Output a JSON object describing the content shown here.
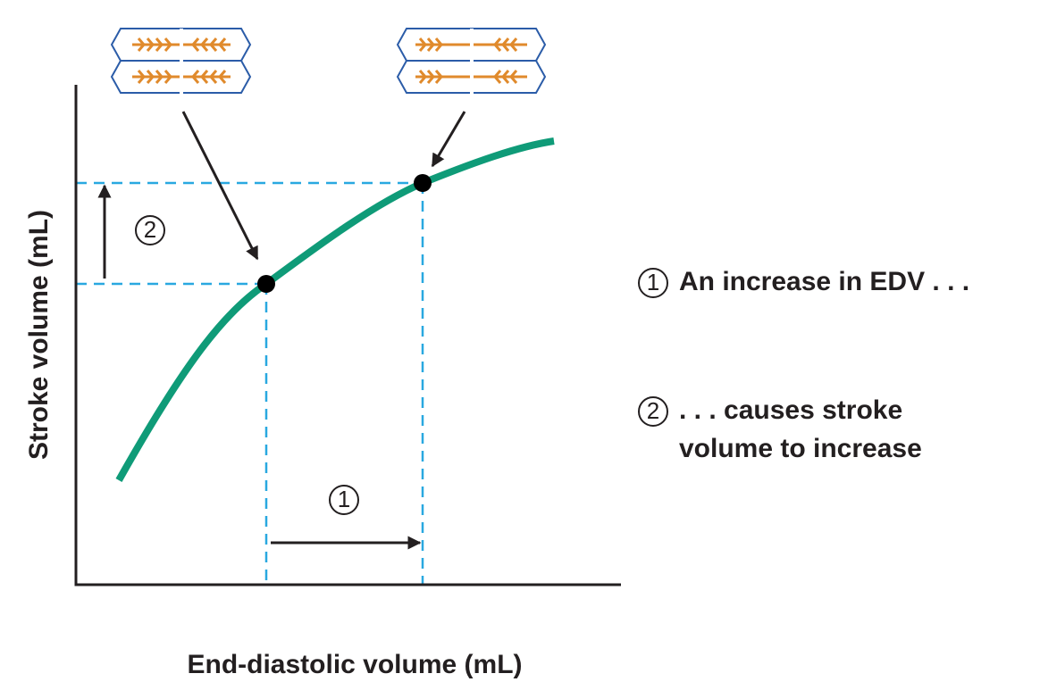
{
  "axes": {
    "x_label": "End-diastolic volume (mL)",
    "y_label": "Stroke volume (mL)"
  },
  "markers": [
    {
      "label": "1"
    },
    {
      "label": "2"
    }
  ],
  "legend": [
    {
      "marker": "1",
      "lines": [
        "An increase in EDV . . ."
      ]
    },
    {
      "marker": "2",
      "lines": [
        ". . . causes stroke",
        "volume to increase"
      ]
    }
  ]
}
